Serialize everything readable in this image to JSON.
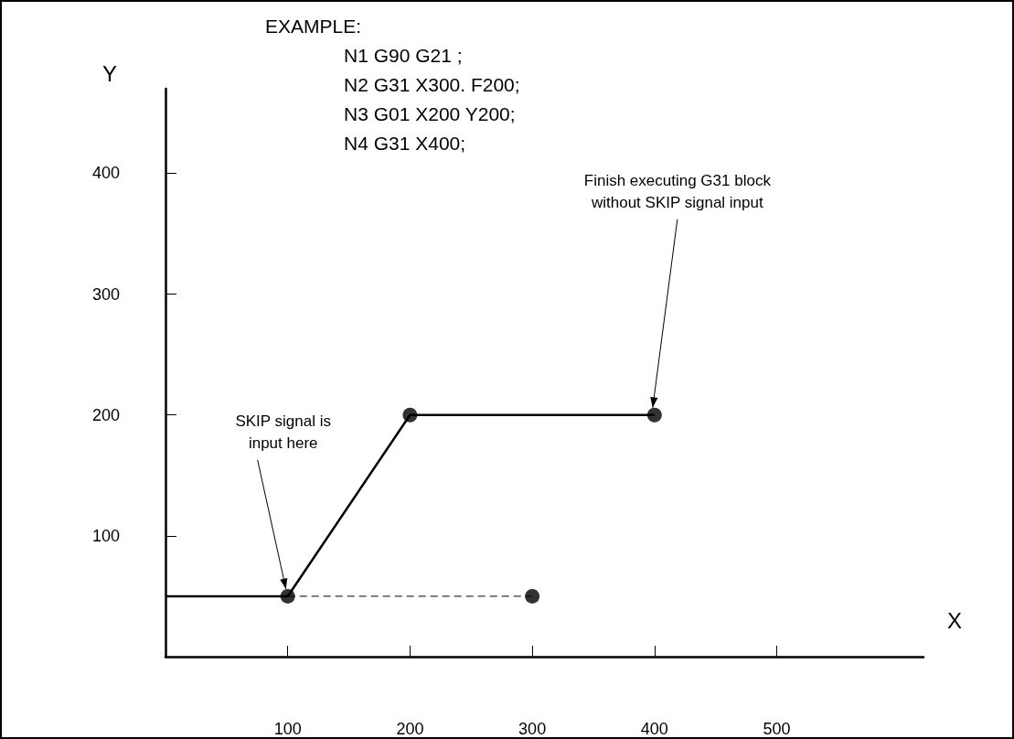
{
  "chart_data": {
    "type": "line",
    "xlabel": "X",
    "ylabel": "Y",
    "xlim": [
      0,
      620
    ],
    "xticks": [
      100,
      200,
      300,
      400,
      500
    ],
    "ylim": [
      0,
      470
    ],
    "yticks": [
      100,
      200,
      300,
      400
    ],
    "grid": false,
    "series": [
      {
        "color": "#000000",
        "x": [
          0,
          100,
          200,
          400
        ],
        "values": [
          50,
          50,
          200,
          200
        ],
        "marker": "none",
        "line_style": "solid"
      },
      {
        "color": "#000000",
        "x": [
          100,
          300
        ],
        "values": [
          50,
          50
        ],
        "marker": "none",
        "line_style": "dashed"
      },
      {
        "type": "scatter",
        "color": "#000000",
        "x": [
          100,
          200,
          400,
          300
        ],
        "values": [
          50,
          200,
          200,
          50
        ],
        "marker": "circle"
      }
    ],
    "annotations": [
      "EXAMPLE:",
      "N1 G90 G21 ;",
      "N2 G31 X300. F200;",
      "N3 G01 X200 Y200;",
      "N4 G31 X400;",
      {
        "text": "SKIP signal is\ninput here",
        "x": 100,
        "y": 50
      },
      {
        "text": "Finish executing G31 block\nwithout SKIP signal input",
        "x": 400,
        "y": 200
      }
    ]
  }
}
